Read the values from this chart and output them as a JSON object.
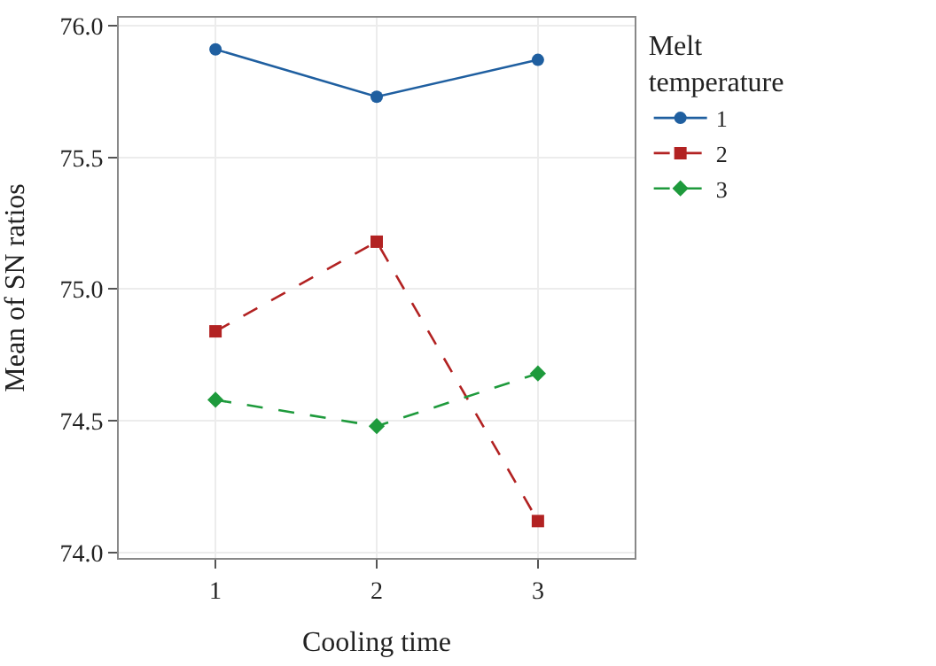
{
  "chart_data": {
    "type": "line",
    "xlabel": "Cooling time",
    "ylabel": "Mean of SN ratios",
    "legend_title": "Melt temperature",
    "categories": [
      "1",
      "2",
      "3"
    ],
    "series": [
      {
        "name": "1",
        "color": "#1f5fa0",
        "values": [
          75.91,
          75.73,
          75.87
        ],
        "marker": "circle",
        "line_style": "solid"
      },
      {
        "name": "2",
        "color": "#b22222",
        "values": [
          74.84,
          75.18,
          74.12
        ],
        "marker": "square",
        "line_style": "dashed"
      },
      {
        "name": "3",
        "color": "#1e9a3c",
        "values": [
          74.58,
          74.48,
          74.68
        ],
        "marker": "diamond",
        "line_style": "dashed"
      }
    ],
    "ylim": [
      73.98,
      76.03
    ],
    "yticks": [
      {
        "value": 74,
        "label": "74.0"
      },
      74.5,
      {
        "value": 75,
        "label": "75.0"
      },
      75.5,
      {
        "value": 76,
        "label": "76.0"
      }
    ],
    "grid": true,
    "legend": "right"
  }
}
